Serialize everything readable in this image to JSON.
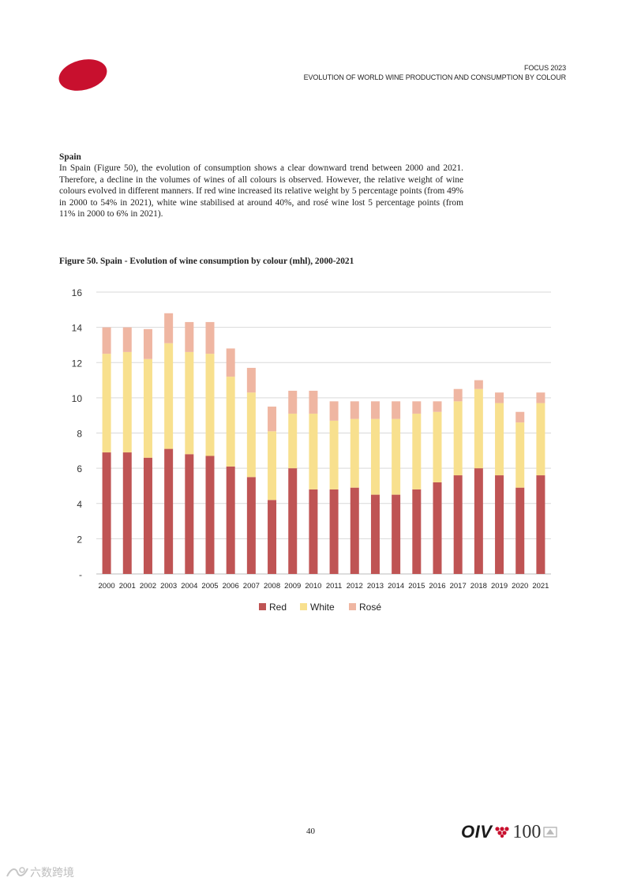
{
  "header": {
    "line1": "FOCUS 2023",
    "line2": "EVOLUTION OF WORLD WINE PRODUCTION AND CONSUMPTION BY COLOUR"
  },
  "section": {
    "heading": "Spain",
    "body": "In Spain (Figure 50), the evolution of consumption shows a clear downward trend between 2000 and 2021. Therefore, a decline in the volumes of wines of all colours is observed. However, the relative weight of wine colours evolved in different manners. If red wine increased its relative weight by 5 percentage points (from 49% in 2000 to 54% in 2021), white wine stabilised at around 40%, and rosé wine lost 5 percentage points (from 11% in 2000 to 6% in 2021)."
  },
  "figure": {
    "title": "Figure 50. Spain - Evolution of wine consumption by colour (mhl), 2000-2021"
  },
  "chart_data": {
    "type": "bar",
    "stacked": true,
    "categories": [
      "2000",
      "2001",
      "2002",
      "2003",
      "2004",
      "2005",
      "2006",
      "2007",
      "2008",
      "2009",
      "2010",
      "2011",
      "2012",
      "2013",
      "2014",
      "2015",
      "2016",
      "2017",
      "2018",
      "2019",
      "2020",
      "2021"
    ],
    "series": [
      {
        "name": "Red",
        "color": "#bf5454",
        "values": [
          6.9,
          6.9,
          6.6,
          7.1,
          6.8,
          6.7,
          6.1,
          5.5,
          4.2,
          6.0,
          4.8,
          4.8,
          4.9,
          4.5,
          4.5,
          4.8,
          5.2,
          5.6,
          6.0,
          5.6,
          4.9,
          5.6
        ]
      },
      {
        "name": "White",
        "color": "#f8e08e",
        "values": [
          5.6,
          5.7,
          5.6,
          6.0,
          5.8,
          5.8,
          5.1,
          4.8,
          3.9,
          3.1,
          4.3,
          3.9,
          3.9,
          4.3,
          4.3,
          4.3,
          4.0,
          4.2,
          4.5,
          4.1,
          3.7,
          4.1
        ]
      },
      {
        "name": "Rosé",
        "color": "#efb6a2",
        "values": [
          1.5,
          1.4,
          1.7,
          1.7,
          1.7,
          1.8,
          1.6,
          1.4,
          1.4,
          1.3,
          1.3,
          1.1,
          1.0,
          1.0,
          1.0,
          0.7,
          0.6,
          0.7,
          0.5,
          0.6,
          0.6,
          0.6
        ]
      }
    ],
    "ylim": [
      0,
      16
    ],
    "yticks": [
      "-",
      "2",
      "4",
      "6",
      "8",
      "10",
      "12",
      "14",
      "16"
    ],
    "grid": true,
    "legend": "bottom"
  },
  "page_number": "40",
  "footer_logo": {
    "text": "OIV",
    "number": "100"
  },
  "watermark": "六数跨境"
}
